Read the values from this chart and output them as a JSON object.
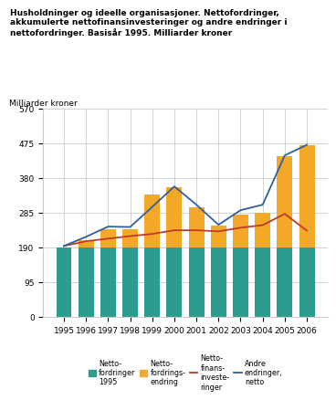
{
  "years": [
    1995,
    1996,
    1997,
    1998,
    1999,
    2000,
    2001,
    2002,
    2003,
    2004,
    2005,
    2006
  ],
  "nettofordringer_1995": [
    190,
    190,
    190,
    190,
    190,
    190,
    190,
    190,
    190,
    190,
    190,
    190
  ],
  "nettofordringsendring": [
    0,
    22,
    50,
    50,
    145,
    165,
    110,
    60,
    90,
    95,
    250,
    280
  ],
  "nettofinansinvesteringer": [
    195,
    208,
    215,
    222,
    228,
    238,
    238,
    235,
    245,
    252,
    283,
    237
  ],
  "andre_endringer_netto": [
    195,
    220,
    248,
    247,
    302,
    358,
    308,
    253,
    293,
    308,
    443,
    472
  ],
  "teal_color": "#2a9d8f",
  "orange_color": "#f4a828",
  "red_color": "#c0392b",
  "blue_color": "#2e5fa3",
  "ylabel": "Milliarder kroner",
  "ylim": [
    0,
    570
  ],
  "yticks": [
    0,
    95,
    190,
    285,
    380,
    475,
    570
  ],
  "title": "Husholdninger og ideelle organisasjoner. Nettofordringer, akkumulerte nettofinansinvesteringer og andre endringer i nettofordringer. Basisår 1995. Milliarder kroner",
  "legend_labels": [
    "Netto-\nfordringer\n1995",
    "Netto-\nfordrings-\nendring",
    "Netto-\nfinans-\ninveste-\nringer",
    "Andre\nendringer,\nnetto"
  ],
  "grid_color": "#cccccc",
  "bg_color": "#ffffff"
}
